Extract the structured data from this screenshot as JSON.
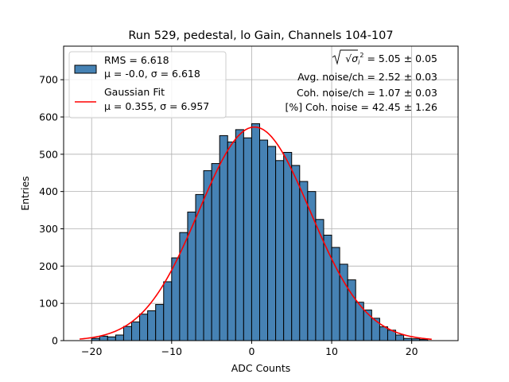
{
  "chart_data": {
    "type": "bar",
    "title": "Run 529, pedestal, lo Gain, Channels 104-107",
    "xlabel": "ADC Counts",
    "ylabel": "Entries",
    "xlim": [
      -23.5,
      25.8
    ],
    "ylim": [
      0,
      790
    ],
    "xticks": [
      -20,
      -10,
      0,
      10,
      20
    ],
    "yticks": [
      0,
      100,
      200,
      300,
      400,
      500,
      600,
      700
    ],
    "grid": true,
    "legend_position": "upper-left",
    "bin_edges": [
      -20,
      -19,
      -18,
      -17,
      -16,
      -15,
      -14,
      -13,
      -12,
      -11,
      -10,
      -9,
      -8,
      -7,
      -6,
      -5,
      -4,
      -3,
      -2,
      -1,
      0,
      1,
      2,
      3,
      4,
      5,
      6,
      7,
      8,
      9,
      10,
      11,
      12,
      13,
      14,
      15,
      16,
      17,
      18,
      19,
      20,
      21,
      22
    ],
    "counts": [
      6,
      12,
      10,
      15,
      38,
      50,
      71,
      80,
      97,
      158,
      222,
      290,
      345,
      392,
      456,
      475,
      550,
      533,
      566,
      544,
      582,
      538,
      521,
      483,
      505,
      470,
      427,
      400,
      325,
      283,
      250,
      205,
      163,
      103,
      82,
      60,
      37,
      28,
      15,
      6,
      5,
      3
    ],
    "series": [
      {
        "kind": "histogram",
        "legend": [
          "RMS = 6.618",
          "μ = -0.0, σ = 6.618"
        ],
        "color": "#4682b4"
      },
      {
        "kind": "gaussian_fit",
        "legend": [
          "Gaussian Fit",
          "μ = 0.355, σ = 6.957"
        ],
        "mu": 0.355,
        "sigma": 6.957,
        "amplitude": 573,
        "x_range": [
          -21.5,
          22.5
        ],
        "color": "#ff0000"
      }
    ],
    "annotations": [
      {
        "label": "√σ",
        "sub": "i",
        "sup": "2",
        "value": " = 5.05 ± 0.05"
      },
      {
        "text": "Avg. noise/ch = 2.52 ± 0.03"
      },
      {
        "text": "Coh. noise/ch = 1.07 ± 0.03"
      },
      {
        "text": "[%] Coh. noise = 42.45 ± 1.26"
      }
    ]
  }
}
